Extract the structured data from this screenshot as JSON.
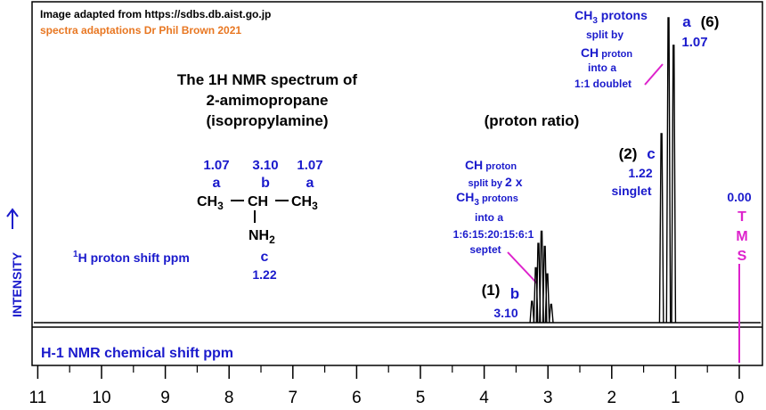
{
  "credits": {
    "source": "Image adapted from https://sdbs.db.aist.go.jp",
    "author": "spectra adaptations Dr Phil Brown 2021"
  },
  "title": {
    "line1": "The 1H  NMR spectrum of",
    "line2": "2-amimopropane",
    "line3": "(isopropylamine)"
  },
  "proton_ratio_label": "(proton ratio)",
  "proton_shift_label": {
    "sup": "1",
    "text": "H proton shift  ppm"
  },
  "y_axis_label": "INTENSITY",
  "x_axis_label": "H-1 NMR chemical shift  ppm",
  "structure": {
    "left_shift": "1.07",
    "left_letter": "a",
    "left_group": "CH3",
    "mid_shift": "3.10",
    "mid_letter": "b",
    "mid_group": "CH",
    "right_shift": "1.07",
    "right_letter": "a",
    "right_group": "CH3",
    "bottom_group": "NH2",
    "bottom_letter": "c",
    "bottom_shift": "1.22"
  },
  "annotations": {
    "a": {
      "line1": "CH3 protons",
      "line2": "split by",
      "line3": "CH proton",
      "line4": "into a",
      "line5": "1:1 doublet",
      "letter": "a",
      "ratio": "(6)",
      "shift": "1.07"
    },
    "b": {
      "line1": "CH proton",
      "line2": "split by 2 x",
      "line3": "CH3 protons",
      "line4": "into a",
      "line5": "1:6:15:20:15:6:1",
      "line6": "septet",
      "ratio": "(1)",
      "letter": "b",
      "shift": "3.10"
    },
    "c": {
      "ratio": "(2)",
      "letter": "c",
      "shift": "1.22",
      "type": "singlet"
    },
    "tms": {
      "shift": "0.00",
      "letters": [
        "T",
        "M",
        "S"
      ]
    }
  },
  "colors": {
    "blue": "#1a1acc",
    "magenta": "#dd22cc",
    "orange": "#e87722",
    "black": "#000000"
  },
  "chart_data": {
    "type": "line",
    "xlabel": "H-1 NMR chemical shift  ppm",
    "ylabel": "INTENSITY",
    "xlim": [
      11.1,
      -0.3
    ],
    "x_reversed": true,
    "x_ticks": [
      11,
      10,
      9,
      8,
      7,
      6,
      5,
      4,
      3,
      2,
      1,
      0
    ],
    "grid": false,
    "peaks": [
      {
        "label": "a",
        "type": "doublet",
        "lines": [
          1.11,
          1.03
        ],
        "heights": [
          1.0,
          0.91
        ],
        "ratio": 6,
        "shift": 1.07
      },
      {
        "label": "c",
        "type": "singlet",
        "lines": [
          1.22
        ],
        "heights": [
          0.62
        ],
        "ratio": 2,
        "shift": 1.22
      },
      {
        "label": "b",
        "type": "septet",
        "lines": [
          3.25,
          3.19,
          3.15,
          3.1,
          3.05,
          3.01,
          2.95
        ],
        "heights": [
          0.07,
          0.18,
          0.26,
          0.3,
          0.25,
          0.16,
          0.06
        ],
        "ratio": 1,
        "shift": 3.1
      },
      {
        "label": "TMS",
        "type": "reference",
        "lines": [
          0.0
        ],
        "heights": [
          0.0
        ],
        "shift": 0.0
      }
    ]
  }
}
